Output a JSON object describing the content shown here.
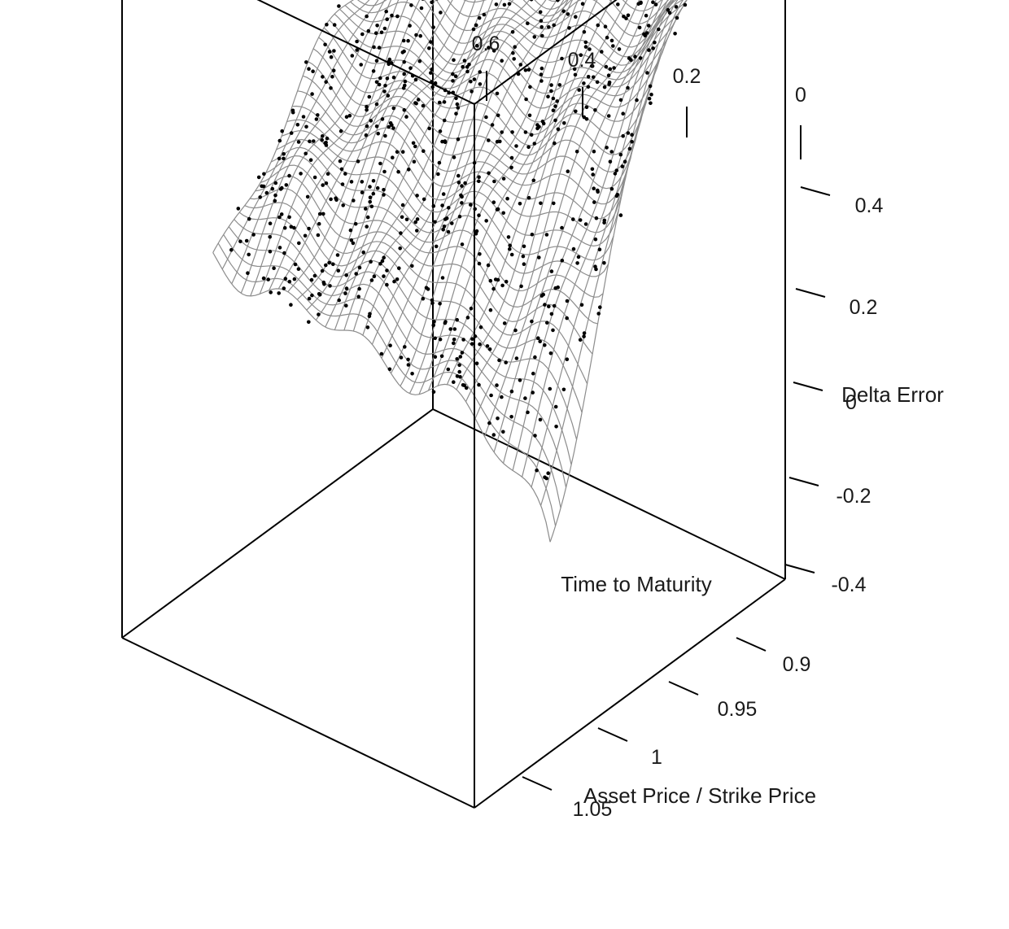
{
  "chart_data": {
    "type": "surface3d",
    "title": "",
    "axes": {
      "time": {
        "label": "Time to Maturity",
        "range": [
          0,
          0.7
        ],
        "ticks": [
          {
            "value": 0.6,
            "label": "0.6"
          },
          {
            "value": 0.4,
            "label": "0.4"
          },
          {
            "value": 0.2,
            "label": "0.2"
          },
          {
            "value": 0,
            "label": "0"
          }
        ]
      },
      "moneyness": {
        "label": "Asset Price / Strike Price",
        "range": [
          0.85,
          1.1
        ],
        "ticks": [
          {
            "value": 0.9,
            "label": "0.9"
          },
          {
            "value": 0.95,
            "label": "0.95"
          },
          {
            "value": 1,
            "label": "1"
          },
          {
            "value": 1.05,
            "label": "1.05"
          }
        ]
      },
      "delta": {
        "label": "Delta Error",
        "range": [
          -0.55,
          0.5
        ],
        "ticks": [
          {
            "value": 0.4,
            "label": "0.4"
          },
          {
            "value": 0.2,
            "label": "0.2"
          },
          {
            "value": 0,
            "label": "0"
          },
          {
            "value": -0.2,
            "label": "-0.2"
          },
          {
            "value": -0.4,
            "label": "-0.4"
          }
        ]
      }
    },
    "surface": {
      "time_grid_count": 36,
      "moneyness_grid_count": 40,
      "mesh_color": "#8c8c8c"
    },
    "points": {
      "count": 900,
      "color": "#000000"
    },
    "box_color": "#000000"
  }
}
